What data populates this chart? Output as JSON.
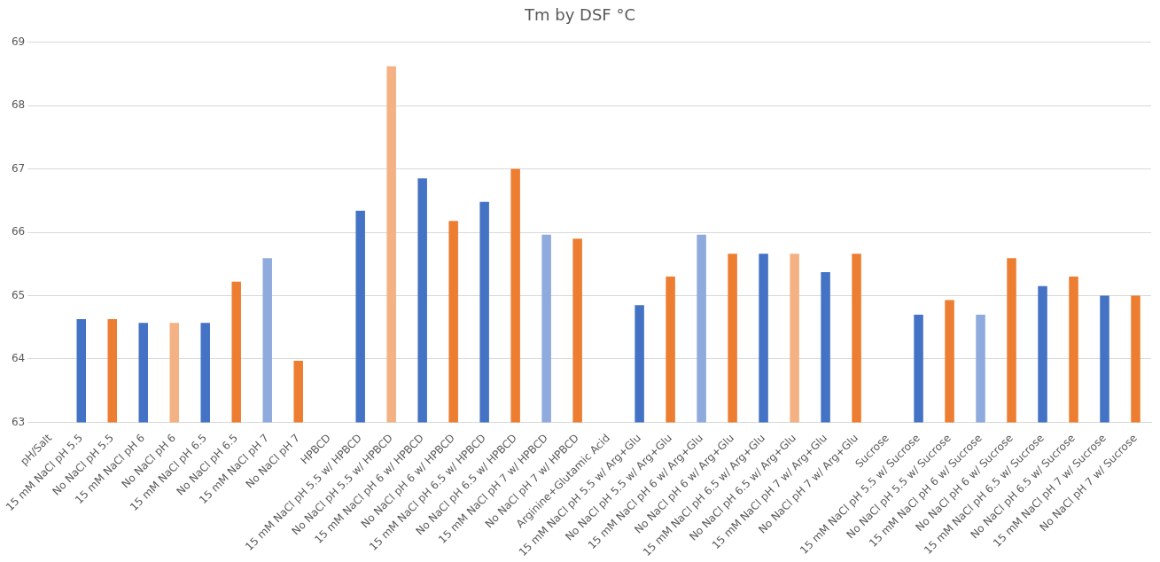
{
  "chart_data": {
    "type": "bar",
    "title": "Tm by DSF °C",
    "categories": [
      "pH/Salt",
      "15 mM NaCl pH 5.5",
      "No NaCl pH 5.5",
      "15 mM NaCl pH 6",
      "No NaCl pH 6",
      "15 mM NaCl pH 6.5",
      "No NaCl pH 6.5",
      "15 mM NaCl pH 7",
      "No NaCl pH 7",
      "HPBCD",
      "15 mM NaCl pH 5.5 w/ HPBCD",
      "No NaCl pH 5.5 w/ HPBCD",
      "15 mM NaCl pH 6 w/ HPBCD",
      "No NaCl pH 6 w/ HPBCD",
      "15 mM NaCl pH 6.5 w/ HPBCD",
      "No NaCl pH 6.5 w/ HPBCD",
      "15 mM NaCl pH 7 w/ HPBCD",
      "No NaCl pH 7 w/ HPBCD",
      "Arginine+Glutamic Acid",
      "15 mM NaCl pH 5.5 w/ Arg+Glu",
      "No NaCl pH 5.5 w/ Arg+Glu",
      "15 mM NaCl pH 6 w/ Arg+Glu",
      "No NaCl pH 6 w/ Arg+Glu",
      "15 mM NaCl pH 6.5 w/ Arg+Glu",
      "No NaCl pH 6.5 w/ Arg+Glu",
      "15 mM NaCl pH 7 w/ Arg+Glu",
      "No NaCl pH 7 w/ Arg+Glu",
      "Sucrose",
      "15 mM NaCl pH 5.5 w/ Sucrose",
      "No NaCl pH 5.5 w/ Sucrose",
      "15 mM NaCl pH 6 w/ Sucrose",
      "No NaCl pH 6 w/ Sucrose",
      "15 mM NaCl pH 6.5 w/ Sucrose",
      "No NaCl pH 6.5 w/ Sucrose",
      "15 mM NaCl pH 7 w/ Sucrose",
      "No NaCl pH 7 w/ Sucrose"
    ],
    "values": [
      null,
      64.63,
      64.63,
      64.57,
      64.57,
      64.57,
      65.22,
      65.59,
      63.97,
      null,
      66.34,
      68.62,
      66.85,
      66.18,
      66.48,
      67.0,
      65.96,
      65.9,
      null,
      64.85,
      65.3,
      65.96,
      65.66,
      65.66,
      65.66,
      65.37,
      65.66,
      null,
      64.7,
      64.93,
      64.7,
      65.59,
      65.15,
      65.3,
      65.0,
      65.0
    ],
    "colors": [
      "#4472c4",
      "#4472c4",
      "#ed7d31",
      "#4472c4",
      "#f4b183",
      "#4472c4",
      "#ed7d31",
      "#8faadc",
      "#ed7d31",
      "#4472c4",
      "#4472c4",
      "#f4b183",
      "#4472c4",
      "#ed7d31",
      "#4472c4",
      "#ed7d31",
      "#8faadc",
      "#ed7d31",
      "#4472c4",
      "#4472c4",
      "#ed7d31",
      "#8faadc",
      "#ed7d31",
      "#4472c4",
      "#f4b183",
      "#4472c4",
      "#ed7d31",
      "#4472c4",
      "#4472c4",
      "#ed7d31",
      "#8faadc",
      "#ed7d31",
      "#4472c4",
      "#ed7d31",
      "#4472c4",
      "#ed7d31"
    ],
    "ylim": [
      63,
      69
    ],
    "yticks": [
      63,
      64,
      65,
      66,
      67,
      68,
      69
    ],
    "grid": "y",
    "legend": false
  }
}
